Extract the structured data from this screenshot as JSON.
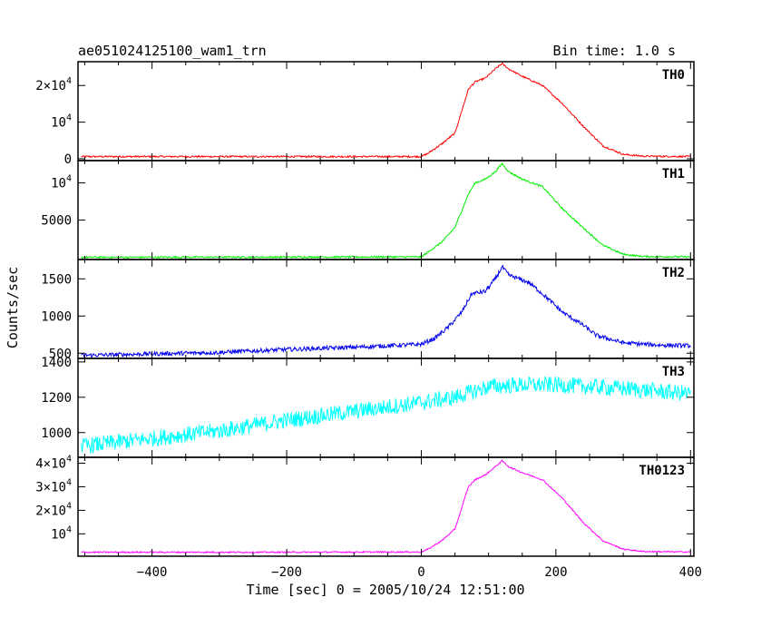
{
  "header": {
    "title": "ae051024125100_wam1_trn",
    "bin_time": "Bin time: 1.0 s"
  },
  "chart_data": {
    "type": "line",
    "title": "ae051024125100_wam1_trn",
    "subtitle": "Bin time: 1.0 s",
    "xlabel": "Time [sec] 0 = 2005/10/24 12:51:00",
    "ylabel": "Counts/sec",
    "xlim": [
      -510,
      405
    ],
    "x_ticks": [
      -400,
      -200,
      0,
      200,
      400
    ],
    "x_tick_labels": [
      "−400",
      "−200",
      "0",
      "200",
      "400"
    ],
    "grid": false,
    "panels": [
      {
        "name": "TH0",
        "color": "#ff0000",
        "ylim": [
          -500,
          26500
        ],
        "noise": 180,
        "y_ticks": [
          0,
          10000,
          20000
        ],
        "y_tick_labels": [
          "0",
          "10^4",
          "2×10^4"
        ],
        "points": [
          [
            -510,
            600
          ],
          [
            -200,
            600
          ],
          [
            0,
            600
          ],
          [
            10,
            1500
          ],
          [
            30,
            4000
          ],
          [
            50,
            7000
          ],
          [
            70,
            19000
          ],
          [
            80,
            21000
          ],
          [
            95,
            22000
          ],
          [
            110,
            24500
          ],
          [
            120,
            26000
          ],
          [
            130,
            24500
          ],
          [
            150,
            22500
          ],
          [
            180,
            20000
          ],
          [
            210,
            15000
          ],
          [
            240,
            9000
          ],
          [
            270,
            3500
          ],
          [
            300,
            1200
          ],
          [
            330,
            700
          ],
          [
            400,
            600
          ]
        ]
      },
      {
        "name": "TH1",
        "color": "#00ee00",
        "ylim": [
          -300,
          13000
        ],
        "noise": 90,
        "y_ticks": [
          5000,
          10000
        ],
        "y_tick_labels": [
          "5000",
          "10^4"
        ],
        "points": [
          [
            -510,
            0
          ],
          [
            0,
            50
          ],
          [
            10,
            700
          ],
          [
            30,
            2000
          ],
          [
            50,
            4000
          ],
          [
            70,
            8500
          ],
          [
            80,
            10000
          ],
          [
            95,
            10500
          ],
          [
            110,
            11500
          ],
          [
            120,
            12600
          ],
          [
            130,
            11500
          ],
          [
            150,
            10500
          ],
          [
            180,
            9500
          ],
          [
            210,
            6500
          ],
          [
            240,
            4000
          ],
          [
            270,
            1600
          ],
          [
            300,
            400
          ],
          [
            330,
            100
          ],
          [
            400,
            50
          ]
        ]
      },
      {
        "name": "TH2",
        "color": "#0000ee",
        "ylim": [
          430,
          1760
        ],
        "noise": 22,
        "y_ticks": [
          500,
          1000,
          1500
        ],
        "y_tick_labels": [
          "500",
          "1000",
          "1500"
        ],
        "points": [
          [
            -510,
            470
          ],
          [
            -300,
            510
          ],
          [
            -200,
            550
          ],
          [
            -100,
            580
          ],
          [
            0,
            620
          ],
          [
            20,
            700
          ],
          [
            40,
            850
          ],
          [
            60,
            1050
          ],
          [
            75,
            1300
          ],
          [
            95,
            1330
          ],
          [
            110,
            1500
          ],
          [
            120,
            1660
          ],
          [
            130,
            1550
          ],
          [
            160,
            1450
          ],
          [
            180,
            1300
          ],
          [
            210,
            1050
          ],
          [
            240,
            880
          ],
          [
            260,
            740
          ],
          [
            300,
            640
          ],
          [
            350,
            610
          ],
          [
            400,
            600
          ]
        ]
      },
      {
        "name": "TH3",
        "color": "#00ffff",
        "ylim": [
          860,
          1420
        ],
        "noise": 36,
        "y_ticks": [
          1000,
          1200,
          1400
        ],
        "y_tick_labels": [
          "1000",
          "1200",
          "1400"
        ],
        "points": [
          [
            -510,
            920
          ],
          [
            -300,
            1010
          ],
          [
            -200,
            1070
          ],
          [
            -100,
            1120
          ],
          [
            0,
            1170
          ],
          [
            50,
            1200
          ],
          [
            100,
            1260
          ],
          [
            150,
            1270
          ],
          [
            200,
            1270
          ],
          [
            300,
            1250
          ],
          [
            400,
            1220
          ]
        ]
      },
      {
        "name": "TH0123",
        "color": "#ff00ff",
        "ylim": [
          500,
          42500
        ],
        "noise": 220,
        "y_ticks": [
          10000,
          20000,
          30000,
          40000
        ],
        "y_tick_labels": [
          "10^4",
          "2×10^4",
          "3×10^4",
          "4×10^4"
        ],
        "points": [
          [
            -510,
            2200
          ],
          [
            -200,
            2200
          ],
          [
            0,
            2300
          ],
          [
            10,
            3500
          ],
          [
            30,
            7000
          ],
          [
            50,
            12000
          ],
          [
            70,
            30000
          ],
          [
            80,
            33000
          ],
          [
            95,
            35000
          ],
          [
            110,
            38500
          ],
          [
            120,
            41000
          ],
          [
            130,
            38500
          ],
          [
            150,
            36000
          ],
          [
            180,
            33000
          ],
          [
            210,
            25000
          ],
          [
            240,
            15000
          ],
          [
            270,
            7000
          ],
          [
            300,
            3500
          ],
          [
            330,
            2500
          ],
          [
            400,
            2300
          ]
        ]
      }
    ]
  }
}
